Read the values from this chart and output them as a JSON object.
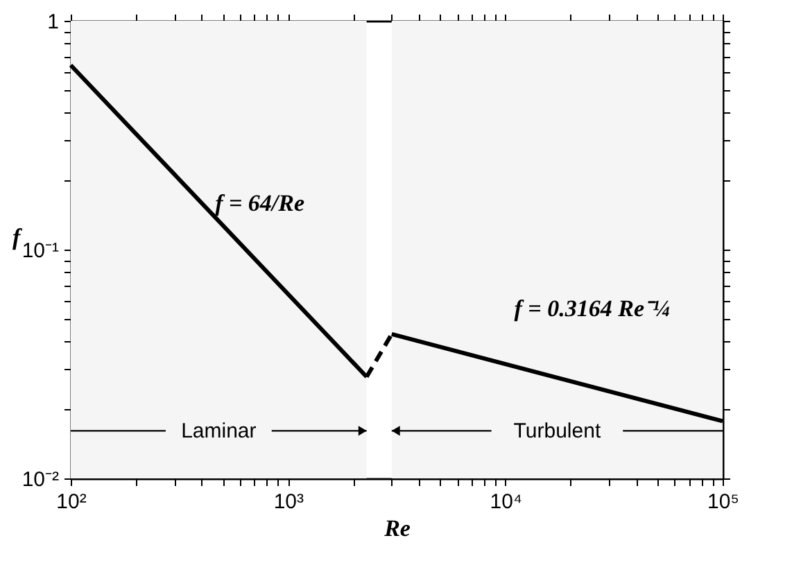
{
  "chart_data": {
    "type": "line",
    "xlabel": "Re",
    "ylabel": "f",
    "log": "xy",
    "grid": false,
    "xlim": [
      100,
      100000
    ],
    "ylim": [
      0.01,
      1
    ],
    "xticks": [
      {
        "value": 100,
        "label": "10²"
      },
      {
        "value": 200,
        "label": null
      },
      {
        "value": 300,
        "label": null
      },
      {
        "value": 400,
        "label": null
      },
      {
        "value": 500,
        "label": null
      },
      {
        "value": 600,
        "label": null
      },
      {
        "value": 700,
        "label": null
      },
      {
        "value": 800,
        "label": null
      },
      {
        "value": 900,
        "label": null
      },
      {
        "value": 1000,
        "label": "10³"
      },
      {
        "value": 2000,
        "label": null
      },
      {
        "value": 3000,
        "label": null
      },
      {
        "value": 4000,
        "label": null
      },
      {
        "value": 5000,
        "label": null
      },
      {
        "value": 6000,
        "label": null
      },
      {
        "value": 7000,
        "label": null
      },
      {
        "value": 8000,
        "label": null
      },
      {
        "value": 9000,
        "label": null
      },
      {
        "value": 10000,
        "label": "10⁴"
      },
      {
        "value": 20000,
        "label": null
      },
      {
        "value": 30000,
        "label": null
      },
      {
        "value": 40000,
        "label": null
      },
      {
        "value": 50000,
        "label": null
      },
      {
        "value": 60000,
        "label": null
      },
      {
        "value": 70000,
        "label": null
      },
      {
        "value": 80000,
        "label": null
      },
      {
        "value": 90000,
        "label": null
      },
      {
        "value": 100000,
        "label": "10⁵"
      }
    ],
    "yticks": [
      {
        "value": 0.01,
        "label": "10⁻²"
      },
      {
        "value": 0.02,
        "label": null
      },
      {
        "value": 0.03,
        "label": null
      },
      {
        "value": 0.04,
        "label": null
      },
      {
        "value": 0.05,
        "label": null
      },
      {
        "value": 0.06,
        "label": null
      },
      {
        "value": 0.07,
        "label": null
      },
      {
        "value": 0.08,
        "label": null
      },
      {
        "value": 0.09,
        "label": null
      },
      {
        "value": 0.1,
        "label": "10⁻¹"
      },
      {
        "value": 0.2,
        "label": null
      },
      {
        "value": 0.3,
        "label": null
      },
      {
        "value": 0.4,
        "label": null
      },
      {
        "value": 0.5,
        "label": null
      },
      {
        "value": 0.6,
        "label": null
      },
      {
        "value": 0.7,
        "label": null
      },
      {
        "value": 0.8,
        "label": null
      },
      {
        "value": 0.9,
        "label": null
      },
      1
    ],
    "series": [
      {
        "color": "#000000",
        "line_style": "solid",
        "x": [
          100,
          2300
        ],
        "values": [
          0.64,
          0.0278
        ]
      },
      {
        "color": "#000000",
        "line_style": "dashed",
        "x": [
          2300,
          3000
        ],
        "values": [
          0.0278,
          0.0427
        ]
      },
      {
        "color": "#000000",
        "line_style": "solid",
        "x": [
          3000,
          100000
        ],
        "values": [
          0.0427,
          0.0178
        ]
      }
    ],
    "bands": [
      {
        "axis": "x",
        "from": 100,
        "to": 2300,
        "label": "Laminar",
        "color": "#f5f5f5"
      },
      {
        "axis": "x",
        "from": 3000,
        "to": 100000,
        "label": "Turbulent",
        "color": "#f5f5f5"
      }
    ],
    "annotations": [
      "f = 64/Re",
      "f = 0.3164 Re⁻¼"
    ]
  }
}
